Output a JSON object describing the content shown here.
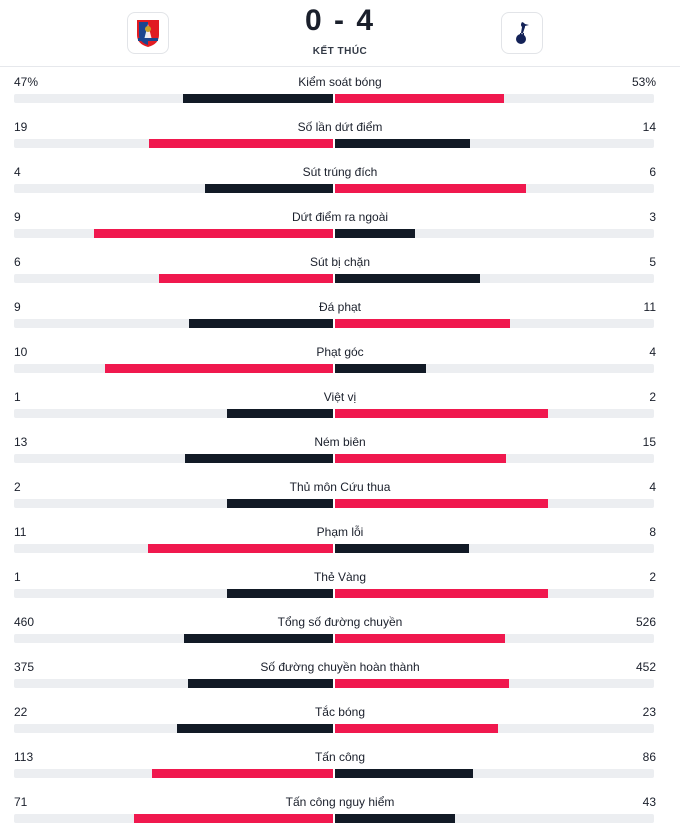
{
  "match": {
    "score": "0 - 4",
    "status": "KẾT THÚC",
    "home_icon": "crystal-palace-crest-icon",
    "away_icon": "tottenham-crest-icon"
  },
  "colors": {
    "winner": "#f0184e",
    "loser": "#121a26",
    "track": "#eceef1"
  },
  "stats": [
    {
      "label": "Kiểm soát bóng",
      "home": "47%",
      "away": "53%",
      "home_value": 47,
      "away_value": 53
    },
    {
      "label": "Số lần dứt điểm",
      "home": "19",
      "away": "14",
      "home_value": 19,
      "away_value": 14
    },
    {
      "label": "Sút trúng đích",
      "home": "4",
      "away": "6",
      "home_value": 4,
      "away_value": 6
    },
    {
      "label": "Dứt điểm ra ngoài",
      "home": "9",
      "away": "3",
      "home_value": 9,
      "away_value": 3
    },
    {
      "label": "Sút bị chặn",
      "home": "6",
      "away": "5",
      "home_value": 6,
      "away_value": 5
    },
    {
      "label": "Đá phạt",
      "home": "9",
      "away": "11",
      "home_value": 9,
      "away_value": 11
    },
    {
      "label": "Phạt góc",
      "home": "10",
      "away": "4",
      "home_value": 10,
      "away_value": 4
    },
    {
      "label": "Việt vị",
      "home": "1",
      "away": "2",
      "home_value": 1,
      "away_value": 2
    },
    {
      "label": "Ném biên",
      "home": "13",
      "away": "15",
      "home_value": 13,
      "away_value": 15
    },
    {
      "label": "Thủ môn Cứu thua",
      "home": "2",
      "away": "4",
      "home_value": 2,
      "away_value": 4
    },
    {
      "label": "Phạm lỗi",
      "home": "11",
      "away": "8",
      "home_value": 11,
      "away_value": 8
    },
    {
      "label": "Thẻ Vàng",
      "home": "1",
      "away": "2",
      "home_value": 1,
      "away_value": 2
    },
    {
      "label": "Tổng số đường chuyền",
      "home": "460",
      "away": "526",
      "home_value": 460,
      "away_value": 526
    },
    {
      "label": "Số đường chuyền hoàn thành",
      "home": "375",
      "away": "452",
      "home_value": 375,
      "away_value": 452
    },
    {
      "label": "Tắc bóng",
      "home": "22",
      "away": "23",
      "home_value": 22,
      "away_value": 23
    },
    {
      "label": "Tấn công",
      "home": "113",
      "away": "86",
      "home_value": 113,
      "away_value": 86
    },
    {
      "label": "Tấn công nguy hiểm",
      "home": "71",
      "away": "43",
      "home_value": 71,
      "away_value": 43
    }
  ]
}
